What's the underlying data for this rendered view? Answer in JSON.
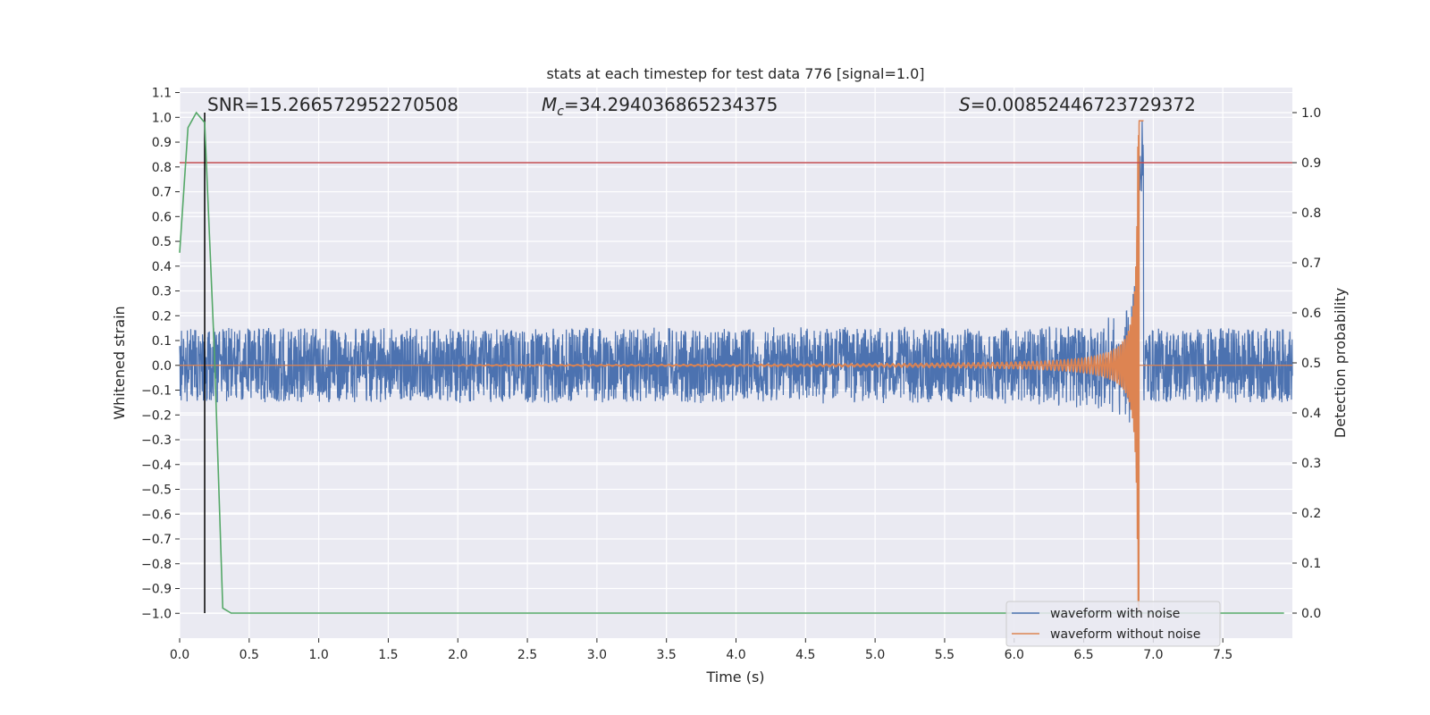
{
  "chart_data": {
    "type": "line",
    "title": "stats at each timestep for test data 776 [signal=1.0]",
    "xlabel": "Time (s)",
    "ylabel": "Whitened strain",
    "y2label": "Detection probability",
    "xlim": [
      0.0,
      8.0
    ],
    "ylim": [
      -1.1,
      1.12
    ],
    "y2lim": [
      -0.05,
      1.05
    ],
    "grid": true,
    "legend_position": "lower-right",
    "x_ticks": [
      "0.0",
      "0.5",
      "1.0",
      "1.5",
      "2.0",
      "2.5",
      "3.0",
      "3.5",
      "4.0",
      "4.5",
      "5.0",
      "5.5",
      "6.0",
      "6.5",
      "7.0",
      "7.5"
    ],
    "y_ticks": [
      "1.1",
      "1.0",
      "0.9",
      "0.8",
      "0.7",
      "0.6",
      "0.5",
      "0.4",
      "0.3",
      "0.2",
      "0.1",
      "0.0",
      "−0.1",
      "−0.2",
      "−0.3",
      "−0.4",
      "−0.5",
      "−0.6",
      "−0.7",
      "−0.8",
      "−0.9",
      "−1.0"
    ],
    "y2_ticks": [
      "1.0",
      "0.9",
      "0.8",
      "0.7",
      "0.6",
      "0.5",
      "0.4",
      "0.3",
      "0.2",
      "0.1",
      "0.0"
    ],
    "annotations": {
      "snr": "SNR=15.266572952270508",
      "mc_symbol": "M",
      "mc_sub": "c",
      "mc_value": "=34.294036865234375",
      "s_symbol": "S",
      "s_value": "=0.00852446723729372"
    },
    "series": [
      {
        "name": "waveform with noise",
        "color": "#4c72b0",
        "noise_amplitude": 0.15,
        "peak_amplitude": 0.85
      },
      {
        "name": "waveform without noise",
        "color": "#dd8452",
        "merger_time": 6.9,
        "peak_amplitude": 1.0
      },
      {
        "name": "",
        "color": "#55a868",
        "axis": "right",
        "x": [
          0.0,
          0.06,
          0.12,
          0.18,
          0.25,
          0.31,
          0.37,
          0.43,
          7.94
        ],
        "y": [
          0.72,
          0.97,
          1.0,
          0.98,
          0.52,
          0.01,
          0.0,
          0.0,
          0.0
        ]
      }
    ],
    "threshold": {
      "value": 0.9,
      "axis": "right",
      "color": "#c44e52"
    },
    "marker_line": {
      "x": 0.18,
      "color": "#000000"
    },
    "zero_line": {
      "value": 0.0,
      "color": "#dd8452"
    }
  }
}
